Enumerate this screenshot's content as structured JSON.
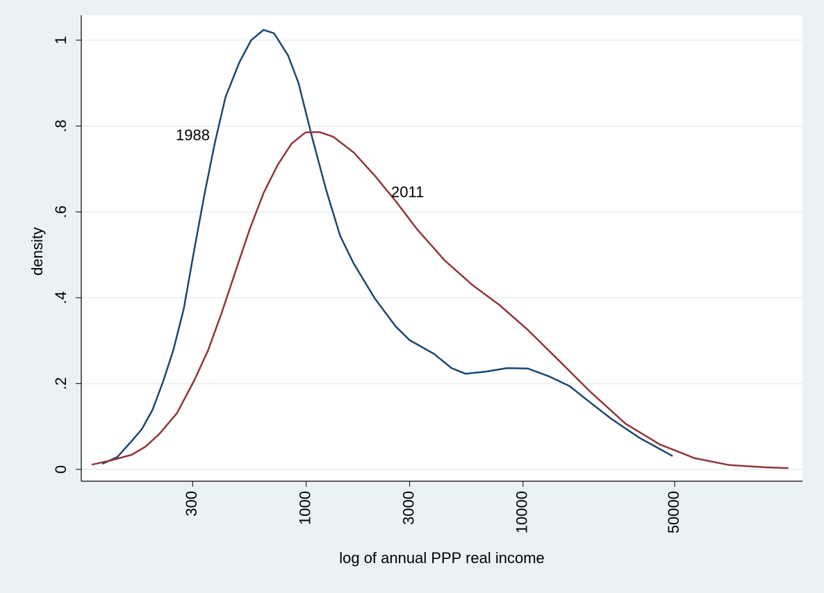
{
  "chart_data": {
    "type": "line",
    "xlabel": "log of annual PPP real income",
    "ylabel": "density",
    "xscale": "log",
    "xlim": [
      92,
      194000
    ],
    "ylim": [
      -0.0275,
      1.058
    ],
    "xticks": [
      300,
      1000,
      3000,
      10000,
      50000
    ],
    "yticks": [
      0,
      {
        "value": 0.2,
        "label": ".2"
      },
      {
        "value": 0.4,
        "label": ".4"
      },
      {
        "value": 0.6,
        "label": ".6"
      },
      {
        "value": 0.8,
        "label": ".8"
      },
      1
    ],
    "grid": true,
    "annotations": [
      "1988",
      "2011"
    ],
    "series": [
      {
        "name": "1988",
        "color": "#1a476f",
        "x": [
          115,
          135,
          157,
          175,
          196,
          219,
          244,
          273,
          305,
          340,
          380,
          425,
          492,
          558,
          637,
          712,
          826,
          923,
          1070,
          1240,
          1435,
          1660,
          2075,
          2590,
          3000,
          3890,
          4680,
          5420,
          6760,
          8430,
          10520,
          13150,
          16400,
          20500,
          25500,
          34300,
          48900
        ],
        "values": [
          0.013,
          0.029,
          0.066,
          0.094,
          0.139,
          0.204,
          0.277,
          0.374,
          0.511,
          0.641,
          0.762,
          0.867,
          0.948,
          1.0,
          1.024,
          1.016,
          0.964,
          0.9,
          0.77,
          0.649,
          0.544,
          0.479,
          0.398,
          0.333,
          0.301,
          0.269,
          0.236,
          0.223,
          0.228,
          0.236,
          0.235,
          0.217,
          0.194,
          0.155,
          0.118,
          0.074,
          0.031
        ]
      },
      {
        "name": "2011",
        "color": "#90353b",
        "x": [
          103,
          126,
          157,
          182,
          211,
          254,
          305,
          353,
          409,
          474,
          550,
          637,
          739,
          857,
          993,
          1150,
          1333,
          1660,
          2075,
          2590,
          3240,
          4350,
          5830,
          7830,
          10520,
          14150,
          20500,
          29600,
          42700,
          61900,
          89500,
          129000,
          167000
        ],
        "values": [
          0.011,
          0.021,
          0.034,
          0.053,
          0.083,
          0.131,
          0.207,
          0.277,
          0.366,
          0.463,
          0.56,
          0.644,
          0.709,
          0.759,
          0.785,
          0.786,
          0.775,
          0.738,
          0.684,
          0.625,
          0.56,
          0.487,
          0.43,
          0.382,
          0.325,
          0.261,
          0.18,
          0.107,
          0.058,
          0.026,
          0.01,
          0.005,
          0.003
        ]
      }
    ]
  }
}
